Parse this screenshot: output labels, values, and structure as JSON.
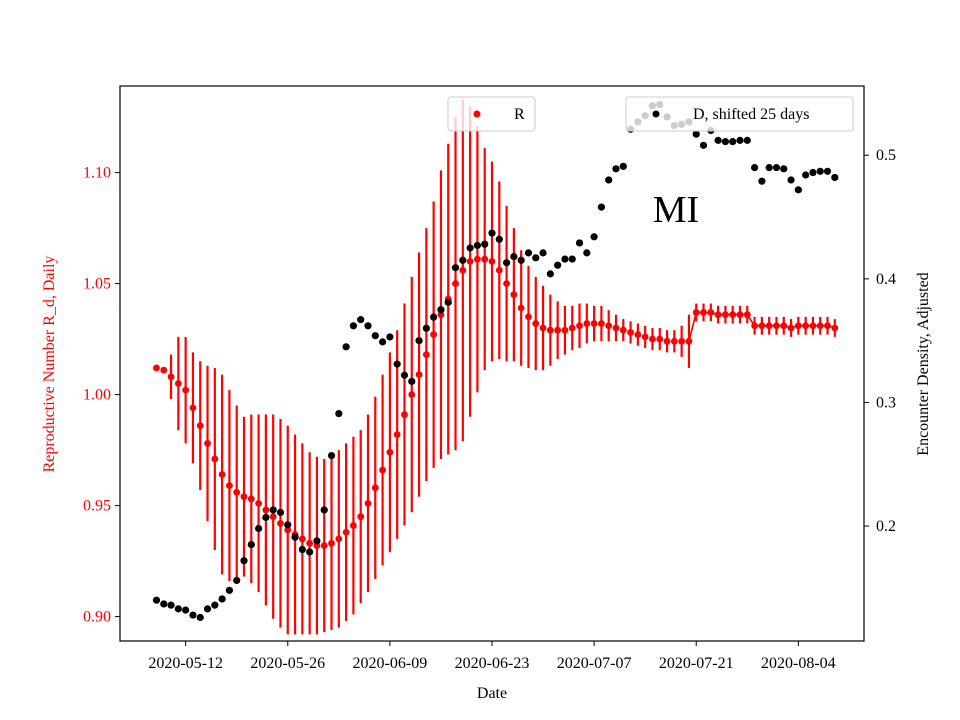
{
  "chart_data": {
    "type": "scatter",
    "annotation": "MI",
    "xlabel": "Date",
    "ylabel_left": "Reproductive Number R_d, Daily",
    "ylabel_right": "Encounter Density, Adjusted",
    "x_ticks": [
      "2020-05-12",
      "2020-05-26",
      "2020-06-09",
      "2020-06-23",
      "2020-07-07",
      "2020-07-21",
      "2020-08-04"
    ],
    "y_left_ticks": [
      0.9,
      0.95,
      1.0,
      1.05,
      1.1
    ],
    "y_right_ticks": [
      0.2,
      0.3,
      0.4,
      0.5
    ],
    "x_range": [
      "2020-05-03",
      "2020-08-13"
    ],
    "y_left_range": [
      0.889,
      1.139
    ],
    "y_right_range": [
      0.107,
      0.556
    ],
    "legend": [
      {
        "label": "R",
        "color": "#ff0000",
        "placement": "top-center"
      },
      {
        "label": "D, shifted 25 days",
        "color": "#000000",
        "placement": "top-right"
      }
    ],
    "colors": {
      "R": "#ff0000",
      "D": "#000000",
      "axis_left": "#ff0000",
      "axis_right": "#000000"
    },
    "series": [
      {
        "name": "R",
        "axis": "left",
        "start_date": "2020-05-08",
        "values": [
          1.012,
          1.011,
          1.008,
          1.005,
          1.002,
          0.994,
          0.986,
          0.978,
          0.971,
          0.964,
          0.959,
          0.956,
          0.954,
          0.953,
          0.951,
          0.948,
          0.945,
          0.942,
          0.939,
          0.937,
          0.935,
          0.933,
          0.932,
          0.932,
          0.933,
          0.935,
          0.938,
          0.941,
          0.945,
          0.951,
          0.958,
          0.966,
          0.974,
          0.982,
          0.991,
          1.0,
          1.009,
          1.018,
          1.027,
          1.036,
          1.043,
          1.05,
          1.056,
          1.06,
          1.061,
          1.061,
          1.06,
          1.056,
          1.05,
          1.045,
          1.039,
          1.035,
          1.032,
          1.03,
          1.029,
          1.029,
          1.029,
          1.03,
          1.031,
          1.032,
          1.032,
          1.032,
          1.031,
          1.03,
          1.029,
          1.028,
          1.027,
          1.026,
          1.025,
          1.025,
          1.024,
          1.024,
          1.024,
          1.024,
          1.037,
          1.037,
          1.037,
          1.036,
          1.036,
          1.036,
          1.036,
          1.036,
          1.031,
          1.031,
          1.031,
          1.031,
          1.031,
          1.03,
          1.031,
          1.031,
          1.031,
          1.031,
          1.031,
          1.03
        ],
        "error": [
          0,
          0.001,
          0.01,
          0.021,
          0.024,
          0.025,
          0.029,
          0.035,
          0.041,
          0.045,
          0.043,
          0.039,
          0.036,
          0.038,
          0.04,
          0.043,
          0.046,
          0.047,
          0.047,
          0.045,
          0.043,
          0.041,
          0.04,
          0.039,
          0.039,
          0.04,
          0.04,
          0.04,
          0.039,
          0.04,
          0.041,
          0.043,
          0.045,
          0.047,
          0.05,
          0.053,
          0.055,
          0.057,
          0.06,
          0.065,
          0.07,
          0.075,
          0.077,
          0.07,
          0.06,
          0.05,
          0.045,
          0.04,
          0.035,
          0.03,
          0.026,
          0.023,
          0.021,
          0.019,
          0.016,
          0.013,
          0.011,
          0.01,
          0.01,
          0.009,
          0.008,
          0.008,
          0.007,
          0.006,
          0.005,
          0.005,
          0.005,
          0.005,
          0.005,
          0.005,
          0.005,
          0.005,
          0.007,
          0.012,
          0.004,
          0.004,
          0.004,
          0.004,
          0.004,
          0.004,
          0.004,
          0.004,
          0.004,
          0.004,
          0.004,
          0.004,
          0.004,
          0.004,
          0.004,
          0.004,
          0.004,
          0.004,
          0.004,
          0.004
        ]
      },
      {
        "name": "D, shifted 25 days",
        "axis": "right",
        "start_date": "2020-05-08",
        "values": [
          0.14,
          0.137,
          0.136,
          0.133,
          0.132,
          0.128,
          0.126,
          0.133,
          0.136,
          0.141,
          0.148,
          0.156,
          0.172,
          0.185,
          0.198,
          0.207,
          0.213,
          0.211,
          0.201,
          0.191,
          0.181,
          0.179,
          0.188,
          0.213,
          0.257,
          0.291,
          0.345,
          0.362,
          0.367,
          0.362,
          0.354,
          0.349,
          0.353,
          0.331,
          0.322,
          0.317,
          0.35,
          0.36,
          0.369,
          0.375,
          0.381,
          0.409,
          0.415,
          0.425,
          0.427,
          0.428,
          0.437,
          0.432,
          0.413,
          0.418,
          0.415,
          0.421,
          0.417,
          0.421,
          0.404,
          0.411,
          0.416,
          0.416,
          0.429,
          0.421,
          0.434,
          0.458,
          0.48,
          0.489,
          0.491,
          0.521,
          0.527,
          0.532,
          0.54,
          0.541,
          0.531,
          0.524,
          0.525,
          0.527,
          0.517,
          0.508,
          0.52,
          0.512,
          0.511,
          0.511,
          0.512,
          0.512,
          0.49,
          0.479,
          0.49,
          0.49,
          0.489,
          0.48,
          0.472,
          0.484,
          0.486,
          0.487,
          0.487,
          0.482
        ]
      }
    ]
  }
}
